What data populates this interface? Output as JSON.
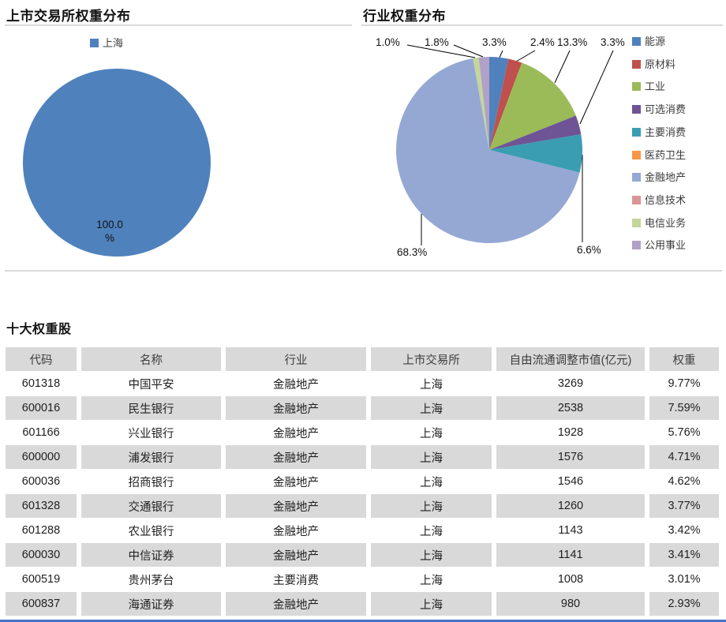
{
  "page": {
    "accent_line_color": "#4472C4",
    "divider_color": "#D9D9D9"
  },
  "chart_data": [
    {
      "type": "pie",
      "title": "上市交易所权重分布",
      "categories": [
        "上海"
      ],
      "values": [
        100.0
      ],
      "colors": [
        "#4F81BD"
      ],
      "data_labels": [
        "100.0 %"
      ],
      "legend_position": "top"
    },
    {
      "type": "pie",
      "title": "行业权重分布",
      "categories": [
        "能源",
        "原材料",
        "工业",
        "可选消费",
        "主要消费",
        "医药卫生",
        "金融地产",
        "信息技术",
        "电信业务",
        "公用事业"
      ],
      "values": [
        3.3,
        2.4,
        13.3,
        3.3,
        6.6,
        0.0,
        68.3,
        0.0,
        1.0,
        1.8
      ],
      "colors": [
        "#4F81BD",
        "#C0504D",
        "#9BBB59",
        "#6E5494",
        "#3A9DB2",
        "#F79646",
        "#95A8D3",
        "#D99694",
        "#C3D69B",
        "#B1A0C7"
      ],
      "data_labels": [
        "3.3%",
        "2.4%",
        "13.3%",
        "3.3%",
        "6.6%",
        "",
        "68.3%",
        "",
        "1.0%",
        "1.8%"
      ],
      "legend_position": "right"
    },
    {
      "type": "table",
      "title": "十大权重股",
      "columns": [
        "代码",
        "名称",
        "行业",
        "上市交易所",
        "自由流通调整市值(亿元)",
        "权重"
      ],
      "rows": [
        [
          "601318",
          "中国平安",
          "金融地产",
          "上海",
          "3269",
          "9.77%"
        ],
        [
          "600016",
          "民生银行",
          "金融地产",
          "上海",
          "2538",
          "7.59%"
        ],
        [
          "601166",
          "兴业银行",
          "金融地产",
          "上海",
          "1928",
          "5.76%"
        ],
        [
          "600000",
          "浦发银行",
          "金融地产",
          "上海",
          "1576",
          "4.71%"
        ],
        [
          "600036",
          "招商银行",
          "金融地产",
          "上海",
          "1546",
          "4.62%"
        ],
        [
          "601328",
          "交通银行",
          "金融地产",
          "上海",
          "1260",
          "3.77%"
        ],
        [
          "601288",
          "农业银行",
          "金融地产",
          "上海",
          "1143",
          "3.42%"
        ],
        [
          "600030",
          "中信证券",
          "金融地产",
          "上海",
          "1141",
          "3.41%"
        ],
        [
          "600519",
          "贵州茅台",
          "主要消费",
          "上海",
          "1008",
          "3.01%"
        ],
        [
          "600837",
          "海通证券",
          "金融地产",
          "上海",
          "980",
          "2.93%"
        ]
      ]
    }
  ]
}
